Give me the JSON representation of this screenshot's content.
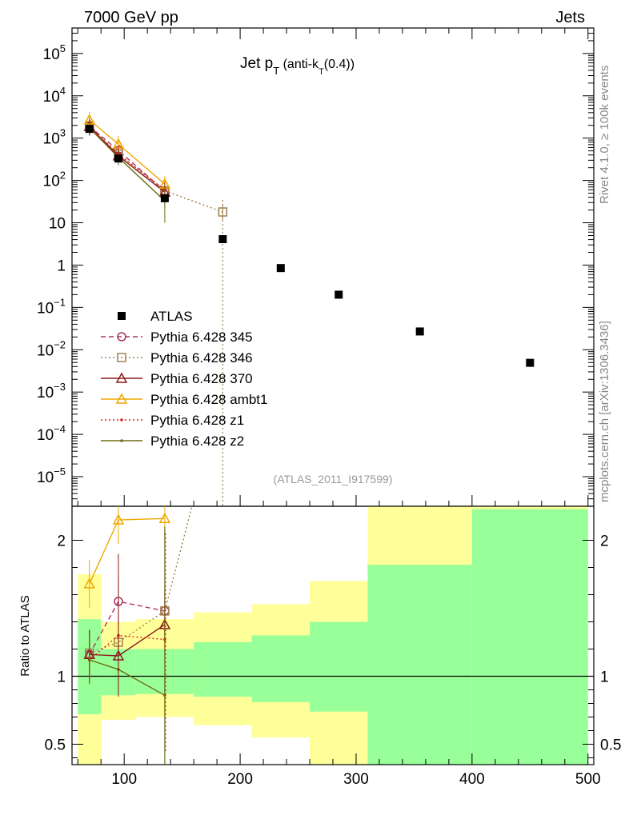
{
  "header": {
    "left": "7000 GeV pp",
    "right": "Jets"
  },
  "side_labels": {
    "rivet": "Rivet 4.1.0, ≥ 100k events",
    "mcplots": "mcplots.cern.ch [arXiv:1306.3436]"
  },
  "chart_data": [
    {
      "type": "scatter",
      "panel": "main",
      "title": "Jet p_T (anti-k_T(0.4))",
      "title_parts": {
        "main": "Jet p",
        "sub1": "T",
        "mid": " (anti-k",
        "sub2": "T",
        "end": "(0.4))"
      },
      "analysis_id": "(ATLAS_2011_I917599)",
      "yscale": "log",
      "ylim": [
        2e-06,
        400000.0
      ],
      "xlim": [
        55,
        505
      ],
      "y_ticks": [
        {
          "v": 1e-05,
          "label": "10",
          "exp": "−5"
        },
        {
          "v": 0.0001,
          "label": "10",
          "exp": "−4"
        },
        {
          "v": 0.001,
          "label": "10",
          "exp": "−3"
        },
        {
          "v": 0.01,
          "label": "10",
          "exp": "−2"
        },
        {
          "v": 0.1,
          "label": "10",
          "exp": "−1"
        },
        {
          "v": 1,
          "label": "1",
          "exp": ""
        },
        {
          "v": 10,
          "label": "10",
          "exp": ""
        },
        {
          "v": 100.0,
          "label": "10",
          "exp": "2"
        },
        {
          "v": 1000.0,
          "label": "10",
          "exp": "3"
        },
        {
          "v": 10000.0,
          "label": "10",
          "exp": "4"
        },
        {
          "v": 100000.0,
          "label": "10",
          "exp": "5"
        }
      ],
      "legend_position": "center-left",
      "series": [
        {
          "name": "ATLAS",
          "color": "#000000",
          "marker": "square",
          "line": "none",
          "x": [
            70,
            95,
            135,
            185,
            235,
            285,
            355,
            450
          ],
          "y": [
            1650,
            330,
            38,
            4.1,
            0.85,
            0.2,
            0.027,
            0.0049
          ]
        },
        {
          "name": "Pythia 6.428 345",
          "color": "#b03060",
          "marker": "circle",
          "line": "dashed",
          "x": [
            70,
            95,
            135
          ],
          "y": [
            1900,
            510,
            56
          ]
        },
        {
          "name": "Pythia 6.428 346",
          "color": "#a08050",
          "marker": "square-open",
          "line": "dotted",
          "x": [
            70,
            95,
            135,
            185
          ],
          "y": [
            1950,
            420,
            57,
            18
          ]
        },
        {
          "name": "Pythia 6.428 370",
          "color": "#8b1a1a",
          "marker": "triangle",
          "line": "solid",
          "x": [
            70,
            95,
            135
          ],
          "y": [
            1900,
            380,
            53
          ]
        },
        {
          "name": "Pythia 6.428 ambt1",
          "color": "#f0a800",
          "marker": "triangle",
          "line": "solid",
          "x": [
            70,
            95,
            135
          ],
          "y": [
            2700,
            720,
            82
          ]
        },
        {
          "name": "Pythia 6.428 z1",
          "color": "#e02020",
          "marker": "dot",
          "line": "dotted",
          "x": [
            70,
            95,
            135
          ],
          "y": [
            1800,
            420,
            60
          ]
        },
        {
          "name": "Pythia 6.428 z2",
          "color": "#6b6b10",
          "marker": "dot",
          "line": "solid",
          "x": [
            70,
            95,
            135
          ],
          "y": [
            1750,
            350,
            33
          ]
        }
      ]
    },
    {
      "type": "line",
      "panel": "ratio",
      "ylabel": "Ratio to ATLAS",
      "ylim": [
        0.35,
        2.25
      ],
      "xlim": [
        55,
        505
      ],
      "x_ticks": [
        100,
        200,
        300,
        400,
        500
      ],
      "y_ticks": [
        0.5,
        1,
        2
      ],
      "bands": [
        {
          "x0": 60,
          "x1": 80,
          "green": [
            0.72,
            1.42
          ],
          "yellow": [
            0.35,
            1.75
          ]
        },
        {
          "x0": 80,
          "x1": 110,
          "green": [
            0.86,
            1.2
          ],
          "yellow": [
            0.68,
            1.4
          ]
        },
        {
          "x0": 110,
          "x1": 160,
          "green": [
            0.87,
            1.2
          ],
          "yellow": [
            0.7,
            1.42
          ]
        },
        {
          "x0": 160,
          "x1": 210,
          "green": [
            0.85,
            1.25
          ],
          "yellow": [
            0.64,
            1.47
          ]
        },
        {
          "x0": 210,
          "x1": 260,
          "green": [
            0.81,
            1.3
          ],
          "yellow": [
            0.55,
            1.53
          ]
        },
        {
          "x0": 260,
          "x1": 310,
          "green": [
            0.74,
            1.4
          ],
          "yellow": [
            0.35,
            1.7
          ]
        },
        {
          "x0": 310,
          "x1": 400,
          "green": [
            0.35,
            1.82
          ],
          "yellow": [
            0.35,
            2.25
          ]
        },
        {
          "x0": 400,
          "x1": 500,
          "green": [
            0.35,
            2.23
          ],
          "yellow": [
            0.35,
            2.25
          ]
        }
      ],
      "series": [
        {
          "name": "Pythia 6.428 345",
          "color": "#b03060",
          "marker": "circle",
          "line": "dashed",
          "x": [
            70,
            95,
            135
          ],
          "y": [
            1.16,
            1.55,
            1.48
          ]
        },
        {
          "name": "Pythia 6.428 346",
          "color": "#a08050",
          "marker": "square-open",
          "line": "dotted",
          "x": [
            70,
            95,
            135,
            160
          ],
          "y": [
            1.17,
            1.25,
            1.48,
            2.3
          ]
        },
        {
          "name": "Pythia 6.428 370",
          "color": "#8b1a1a",
          "marker": "triangle",
          "line": "solid",
          "x": [
            70,
            95,
            135
          ],
          "y": [
            1.16,
            1.15,
            1.38
          ]
        },
        {
          "name": "Pythia 6.428 ambt1",
          "color": "#f0a800",
          "marker": "triangle",
          "line": "solid",
          "x": [
            70,
            95,
            135
          ],
          "y": [
            1.68,
            2.15,
            2.16
          ]
        },
        {
          "name": "Pythia 6.428 z1",
          "color": "#e02020",
          "marker": "dot",
          "line": "dotted",
          "x": [
            70,
            95,
            135
          ],
          "y": [
            1.12,
            1.3,
            1.27
          ]
        },
        {
          "name": "Pythia 6.428 z2",
          "color": "#6b6b10",
          "marker": "dot",
          "line": "solid",
          "x": [
            70,
            95,
            135
          ],
          "y": [
            1.12,
            1.05,
            0.86
          ]
        }
      ]
    }
  ]
}
